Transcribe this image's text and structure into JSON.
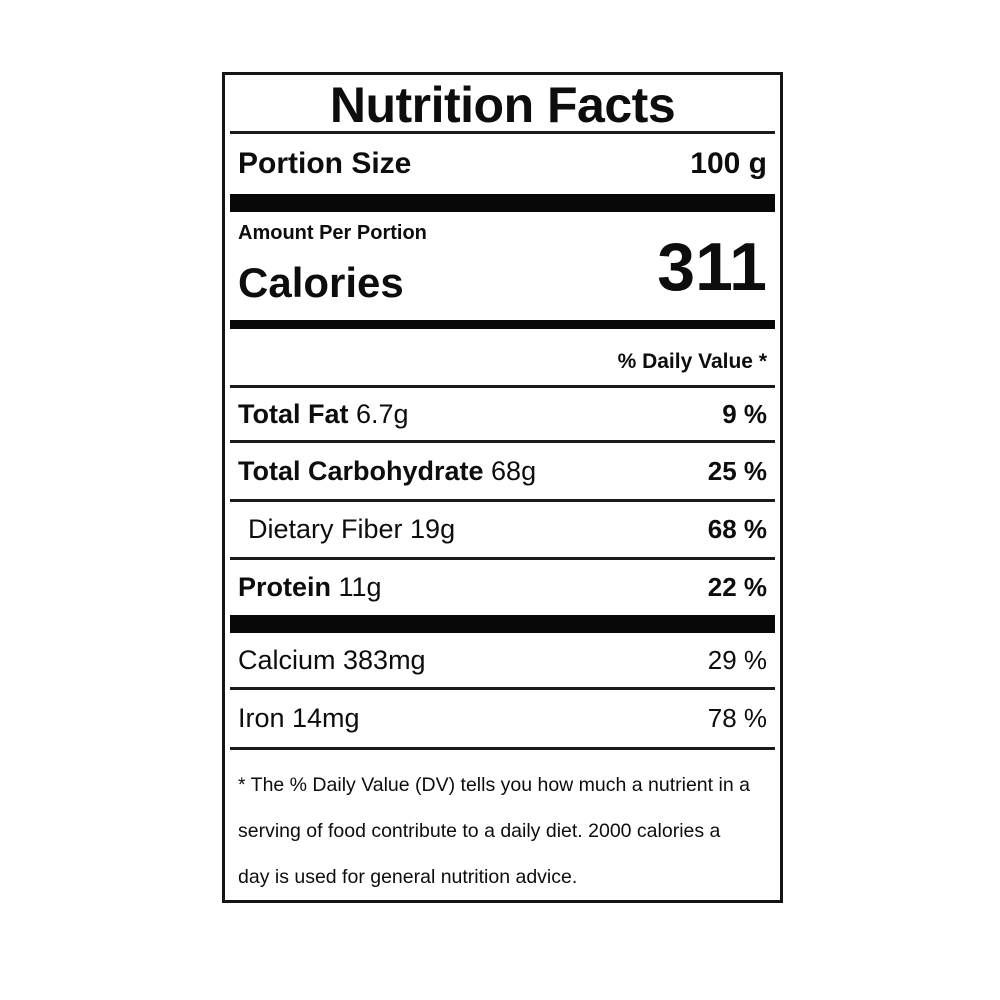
{
  "label": {
    "title": "Nutrition Facts",
    "portion": {
      "label": "Portion Size",
      "value": "100 g"
    },
    "amount_heading": "Amount Per Portion",
    "calories": {
      "label": "Calories",
      "value": "311"
    },
    "daily_value_heading": "% Daily Value *",
    "rows": [
      {
        "name_bold": "Total Fat",
        "name_rest": " 6.7g",
        "percent": "9 %"
      },
      {
        "name_bold": "Total Carbohydrate",
        "name_rest": " 68g",
        "percent": "25 %"
      },
      {
        "name_bold": "",
        "name_rest": "Dietary Fiber 19g",
        "percent": "68 %"
      },
      {
        "name_bold": "Protein",
        "name_rest": " 11g",
        "percent": "22 %"
      },
      {
        "name_bold": "",
        "name_rest": "Calcium 383mg",
        "percent": "29 %"
      },
      {
        "name_bold": "",
        "name_rest": "Iron 14mg",
        "percent": "78 %"
      }
    ],
    "footnote_lines": [
      "* The % Daily Value (DV) tells you how much a nutrient in a",
      "serving of food contribute to a daily diet. 2000 calories a",
      "day is used for general nutrition advice."
    ],
    "colors": {
      "text": "#0d0d0d",
      "bar": "#080808",
      "background": "#ffffff"
    }
  }
}
